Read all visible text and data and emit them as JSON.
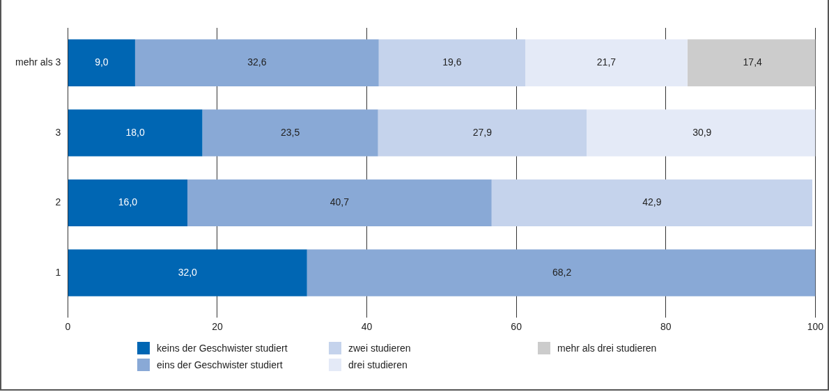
{
  "chart_data": {
    "type": "bar",
    "orientation": "horizontal",
    "stacked": true,
    "categories": [
      "mehr als 3",
      "3",
      "2",
      "1"
    ],
    "series": [
      {
        "name": "keins der Geschwister studiert",
        "color": "#0066b3",
        "values": [
          9.0,
          18.0,
          16.0,
          32.0
        ],
        "value_labels": [
          "9,0",
          "18,0",
          "16,0",
          "32,0"
        ]
      },
      {
        "name": "eins der Geschwister studiert",
        "color": "#89a9d6",
        "values": [
          32.6,
          23.5,
          40.7,
          68.2
        ],
        "value_labels": [
          "32,6",
          "23,5",
          "40,7",
          "68,2"
        ]
      },
      {
        "name": "zwei studieren",
        "color": "#c5d3ec",
        "values": [
          19.6,
          27.9,
          42.9,
          null
        ],
        "value_labels": [
          "19,6",
          "27,9",
          "42,9",
          null
        ]
      },
      {
        "name": "drei studieren",
        "color": "#e4eaf7",
        "values": [
          21.7,
          30.9,
          null,
          null
        ],
        "value_labels": [
          "21,7",
          "30,9",
          null,
          null
        ]
      },
      {
        "name": "mehr als drei studieren",
        "color": "#cccccc",
        "values": [
          17.4,
          null,
          null,
          null
        ],
        "value_labels": [
          "17,4",
          null,
          null,
          null
        ]
      }
    ],
    "xlim": [
      0,
      100
    ],
    "xticks": [
      0,
      20,
      40,
      60,
      80,
      100
    ],
    "grid": "x",
    "legend": "bottom"
  }
}
